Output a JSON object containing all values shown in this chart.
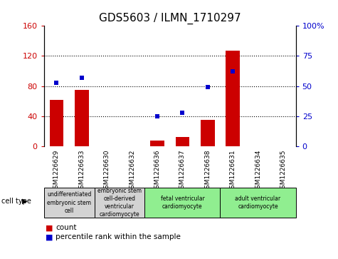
{
  "title": "GDS5603 / ILMN_1710297",
  "samples": [
    "GSM1226629",
    "GSM1226633",
    "GSM1226630",
    "GSM1226632",
    "GSM1226636",
    "GSM1226637",
    "GSM1226638",
    "GSM1226631",
    "GSM1226634",
    "GSM1226635"
  ],
  "counts": [
    62,
    75,
    0,
    0,
    8,
    12,
    35,
    127,
    0,
    0
  ],
  "percentiles": [
    53,
    57,
    null,
    null,
    25,
    28,
    49,
    62,
    null,
    null
  ],
  "ylim_left": [
    0,
    160
  ],
  "ylim_right": [
    0,
    100
  ],
  "yticks_left": [
    0,
    40,
    80,
    120,
    160
  ],
  "yticks_right": [
    0,
    25,
    50,
    75,
    100
  ],
  "ytick_labels_right": [
    "0",
    "25",
    "50",
    "75",
    "100%"
  ],
  "bar_color": "#CC0000",
  "scatter_color": "#0000CC",
  "dotted_lines": [
    40,
    80,
    120
  ],
  "cell_type_groups": [
    {
      "label": "undifferentiated\nembryonic stem\ncell",
      "indices": [
        0,
        1
      ],
      "color": "#d3d3d3"
    },
    {
      "label": "embryonic stem\ncell-derived\nventricular\ncardiomyocyte",
      "indices": [
        2,
        3
      ],
      "color": "#d3d3d3"
    },
    {
      "label": "fetal ventricular\ncardiomyocyte",
      "indices": [
        4,
        5,
        6
      ],
      "color": "#90ee90"
    },
    {
      "label": "adult ventricular\ncardiomyocyte",
      "indices": [
        7,
        8,
        9
      ],
      "color": "#90ee90"
    }
  ],
  "legend_count_label": "count",
  "legend_percentile_label": "percentile rank within the sample",
  "cell_type_label": "cell type",
  "bg_color": "#ffffff",
  "tick_area_color": "#d3d3d3",
  "sample_col_border_color": "#aaaaaa"
}
